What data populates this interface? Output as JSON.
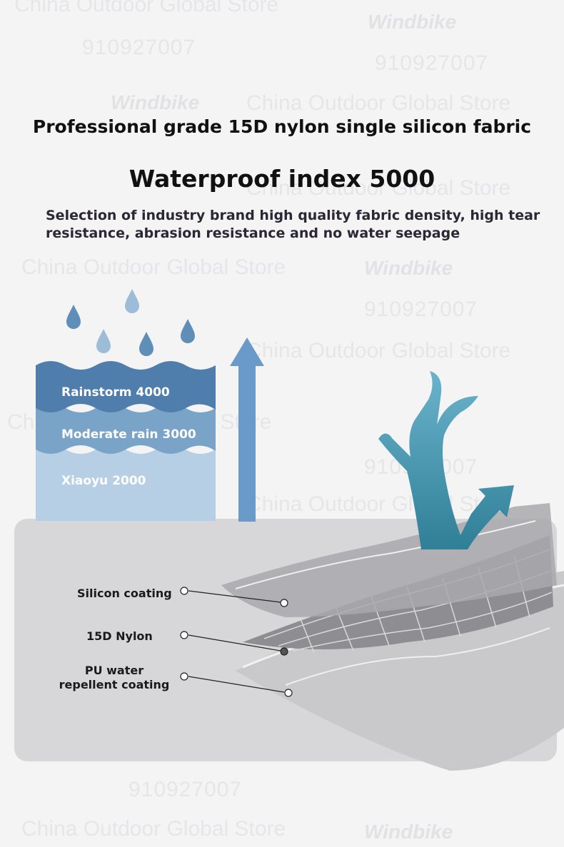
{
  "header": {
    "title": "Professional grade 15D nylon single silicon fabric",
    "subtitle": "Waterproof index 5000",
    "description": "Selection of industry brand high quality fabric density, high tear resistance, abrasion resistance and no water seepage"
  },
  "rain_scale": {
    "levels": [
      {
        "label": "Rainstorm 4000",
        "color": "#4f7ead"
      },
      {
        "label": "Moderate rain 3000",
        "color": "#7aa3c8"
      },
      {
        "label": "Xiaoyu 2000",
        "color": "#b7cfe4"
      }
    ]
  },
  "fabric_layers": {
    "labels": [
      "Silicon coating",
      "15D Nylon",
      "PU water repellent coating"
    ]
  },
  "watermark": {
    "store": "China Outdoor Global Store",
    "brand": "Windbike",
    "id": "910927007"
  },
  "colors": {
    "accent_blue": "#6a9bc8",
    "tree_teal": "#5fa3bf",
    "panel_gray": "#d7d7d9"
  }
}
